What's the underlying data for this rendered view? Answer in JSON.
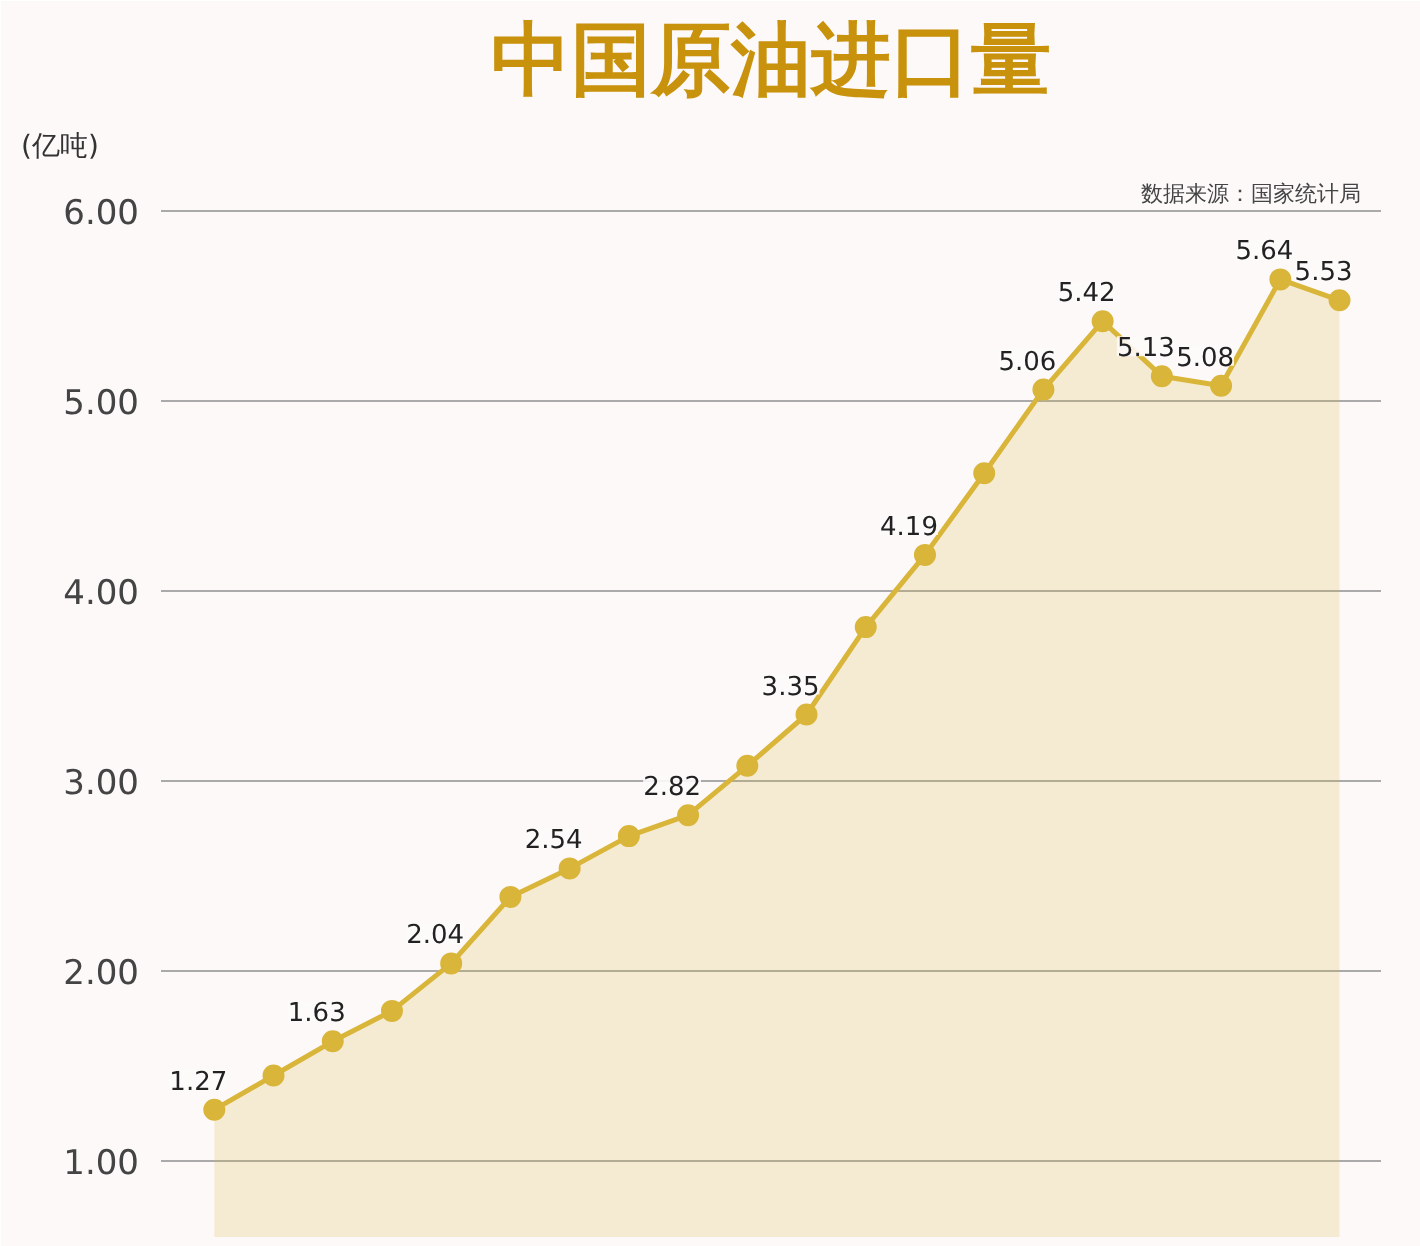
{
  "chart_data": {
    "type": "area",
    "title": "中国原油进口量",
    "ylabel": "(亿吨)",
    "annotations": [
      "数据来源：国家统计局"
    ],
    "categories": [
      null,
      null,
      null,
      null,
      null,
      null,
      null,
      null,
      null,
      null,
      null,
      null,
      null,
      null,
      null,
      null,
      null,
      null,
      null,
      null
    ],
    "series": [
      {
        "color": "#d9b53a",
        "values": [
          1.27,
          1.45,
          1.63,
          1.79,
          2.04,
          2.39,
          2.54,
          2.71,
          2.82,
          3.08,
          3.35,
          3.81,
          4.19,
          4.62,
          5.06,
          5.42,
          5.13,
          5.08,
          5.64,
          5.53
        ],
        "value_labels": [
          "1.27",
          null,
          "1.63",
          null,
          "2.04",
          null,
          "2.54",
          null,
          "2.82",
          null,
          "3.35",
          null,
          "4.19",
          null,
          "5.06",
          "5.42",
          "5.13",
          "5.08",
          "5.64",
          "5.53"
        ]
      }
    ],
    "ylim": [
      0.6,
      6.2
    ],
    "yticks": [
      {
        "value": 1,
        "label": "1.00"
      },
      {
        "value": 2,
        "label": "2.00"
      },
      {
        "value": 3,
        "label": "3.00"
      },
      {
        "value": 4,
        "label": "4.00"
      },
      {
        "value": 5,
        "label": "5.00"
      },
      {
        "value": 6,
        "label": "6.00"
      }
    ],
    "grid": "y",
    "marker": "circle",
    "line_style": "solid",
    "tick_labels": "y"
  }
}
